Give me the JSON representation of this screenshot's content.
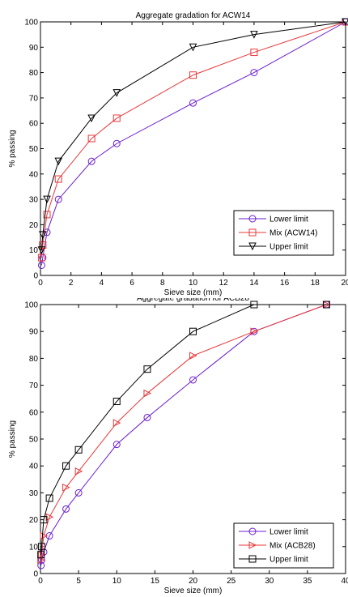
{
  "chart_data": [
    {
      "type": "line",
      "title": "Aggregate gradation for ACW14",
      "xlabel": "Sieve size (mm)",
      "ylabel": "% passing",
      "xlim": [
        0,
        20
      ],
      "ylim": [
        0,
        100
      ],
      "xticks": [
        0,
        2,
        4,
        6,
        8,
        10,
        12,
        14,
        16,
        18,
        20
      ],
      "yticks": [
        0,
        10,
        20,
        30,
        40,
        50,
        60,
        70,
        80,
        90,
        100
      ],
      "grid": false,
      "legend_position": "bottom-right",
      "series": [
        {
          "name": "Lower limit",
          "color": "#6a1ecf",
          "marker": "circle",
          "x": [
            0.075,
            0.15,
            0.425,
            1.18,
            3.35,
            5,
            10,
            14,
            20
          ],
          "y": [
            4,
            7,
            17,
            30,
            45,
            52,
            68,
            80,
            100
          ]
        },
        {
          "name": "Mix (ACW14)",
          "color": "#e8383a",
          "marker": "square",
          "x": [
            0.075,
            0.15,
            0.425,
            1.18,
            3.35,
            5,
            10,
            14,
            20
          ],
          "y": [
            7,
            12,
            24,
            38,
            54,
            62,
            79,
            88,
            100
          ]
        },
        {
          "name": "Upper limit",
          "color": "#000000",
          "marker": "triangle-down",
          "x": [
            0.075,
            0.15,
            0.425,
            1.18,
            3.35,
            5,
            10,
            14,
            20
          ],
          "y": [
            10,
            16,
            30,
            45,
            62,
            72,
            90,
            95,
            100
          ]
        }
      ]
    },
    {
      "type": "line",
      "title": "Aggregate gradation for ACB28",
      "xlabel": "Sieve size (mm)",
      "ylabel": "% passing",
      "xlim": [
        0,
        40
      ],
      "ylim": [
        0,
        100
      ],
      "xticks": [
        0,
        5,
        10,
        15,
        20,
        25,
        30,
        35,
        40
      ],
      "yticks": [
        0,
        10,
        20,
        30,
        40,
        50,
        60,
        70,
        80,
        90,
        100
      ],
      "grid": false,
      "legend_position": "bottom-right",
      "series": [
        {
          "name": "Lower limit",
          "color": "#6a1ecf",
          "marker": "circle",
          "x": [
            0.075,
            0.15,
            0.425,
            1.18,
            3.35,
            5,
            10,
            14,
            20,
            28,
            37.5
          ],
          "y": [
            3,
            5,
            8,
            14,
            24,
            30,
            48,
            58,
            72,
            90,
            100
          ]
        },
        {
          "name": "Mix (ACB28)",
          "color": "#e8383a",
          "marker": "triangle-right",
          "x": [
            0.075,
            0.15,
            0.425,
            1.18,
            3.35,
            5,
            10,
            14,
            20,
            28,
            37.5
          ],
          "y": [
            5,
            7,
            14,
            21,
            32,
            38,
            56,
            67,
            81,
            90,
            100
          ]
        },
        {
          "name": "Upper limit",
          "color": "#000000",
          "marker": "square",
          "x": [
            0.075,
            0.15,
            0.425,
            1.18,
            3.35,
            5,
            10,
            14,
            20,
            28,
            37.5
          ],
          "y": [
            7,
            10,
            20,
            28,
            40,
            46,
            64,
            76,
            90,
            100,
            100
          ]
        }
      ]
    }
  ]
}
